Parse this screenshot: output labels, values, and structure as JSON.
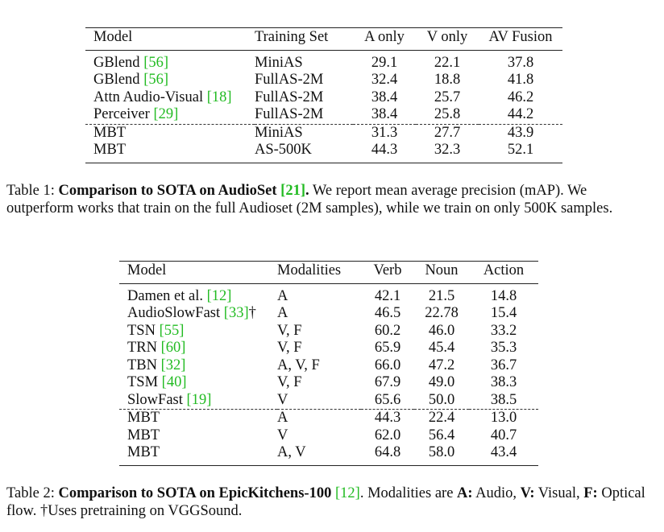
{
  "table1": {
    "headers": [
      "Model",
      "Training Set",
      "A only",
      "V only",
      "AV Fusion"
    ],
    "rows": [
      {
        "model": "GBlend",
        "cite": "56",
        "set": "MiniAS",
        "a": "29.1",
        "v": "22.1",
        "av": "37.8"
      },
      {
        "model": "GBlend",
        "cite": "56",
        "set": "FullAS-2M",
        "a": "32.4",
        "v": "18.8",
        "av": "41.8"
      },
      {
        "model": "Attn Audio-Visual",
        "cite": "18",
        "set": "FullAS-2M",
        "a": "38.4",
        "v": "25.7",
        "av": "46.2"
      },
      {
        "model": "Perceiver",
        "cite": "29",
        "set": "FullAS-2M",
        "a": "38.4",
        "v": "25.8",
        "av": "44.2"
      },
      {
        "model": "MBT",
        "set": "MiniAS",
        "a": "31.3",
        "v": "27.7",
        "av": "43.9"
      },
      {
        "model": "MBT",
        "set": "AS-500K",
        "a": "44.3",
        "v": "32.3",
        "av": "52.1"
      }
    ]
  },
  "caption1": {
    "label": "Table 1: ",
    "bold_pre": "Comparison to SOTA on AudioSet ",
    "cite": "21",
    "bold_post": ".",
    "text": " We report mean average precision (mAP). We outperform works that train on the full Audioset (2M samples), while we train on only 500K samples."
  },
  "table2": {
    "headers": [
      "Model",
      "Modalities",
      "Verb",
      "Noun",
      "Action"
    ],
    "rows": [
      {
        "model": "Damen et al.",
        "cite": "12",
        "suffix": "",
        "mod": "A",
        "verb": "42.1",
        "noun": "21.5",
        "action": "14.8"
      },
      {
        "model": "AudioSlowFast",
        "cite": "33",
        "suffix": "†",
        "mod": "A",
        "verb": "46.5",
        "noun": "22.78",
        "action": "15.4"
      },
      {
        "model": "TSN",
        "cite": "55",
        "suffix": "",
        "mod": "V, F",
        "verb": "60.2",
        "noun": "46.0",
        "action": "33.2"
      },
      {
        "model": "TRN",
        "cite": "60",
        "suffix": "",
        "mod": "V, F",
        "verb": "65.9",
        "noun": "45.4",
        "action": "35.3"
      },
      {
        "model": "TBN",
        "cite": "32",
        "suffix": "",
        "mod": "A, V, F",
        "verb": "66.0",
        "noun": "47.2",
        "action": "36.7"
      },
      {
        "model": "TSM",
        "cite": "40",
        "suffix": "",
        "mod": "V, F",
        "verb": "67.9",
        "noun": "49.0",
        "action": "38.3"
      },
      {
        "model": "SlowFast",
        "cite": "19",
        "suffix": "",
        "mod": "V",
        "verb": "65.6",
        "noun": "50.0",
        "action": "38.5"
      },
      {
        "model": "MBT",
        "mod": "A",
        "verb": "44.3",
        "noun": "22.4",
        "action": "13.0"
      },
      {
        "model": "MBT",
        "mod": "V",
        "verb": "62.0",
        "noun": "56.4",
        "action": "40.7"
      },
      {
        "model": "MBT",
        "mod": "A, V",
        "verb": "64.8",
        "noun": "58.0",
        "action": "43.4"
      }
    ]
  },
  "caption2": {
    "label": "Table 2: ",
    "bold_pre": "Comparison to SOTA on EpicKitchens-100 ",
    "cite": "12",
    "text_1": ". Modalities are ",
    "a_label": "A:",
    "a_text": " Audio, ",
    "v_label": "V:",
    "v_text": " Visual, ",
    "f_label": "F:",
    "f_text": " Optical flow. †Uses pretraining on VGGSound."
  }
}
